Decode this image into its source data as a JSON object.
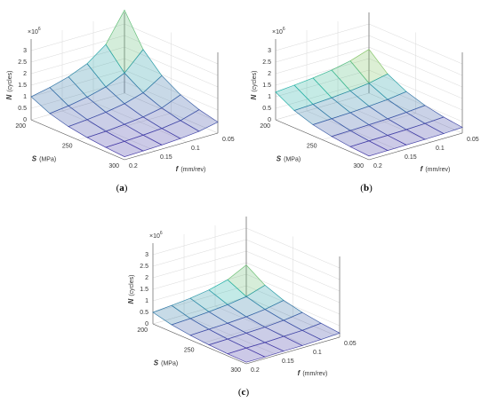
{
  "chart_data": [
    {
      "type": "surface",
      "label_parts": [
        "(",
        "a",
        ")"
      ],
      "xlabel": {
        "symbol": "S",
        "unit": "(MPa)"
      },
      "ylabel": {
        "symbol": "f",
        "unit": "(mm/rev)"
      },
      "zlabel": {
        "symbol": "N",
        "unit": "(cycles)"
      },
      "z_multiplier": {
        "base": "×10",
        "exponent": "6"
      },
      "x": [
        200,
        220,
        240,
        260,
        280,
        300
      ],
      "y": [
        0.05,
        0.08,
        0.11,
        0.14,
        0.17,
        0.2
      ],
      "z": [
        [
          3.6,
          2.34,
          1.74,
          1.4,
          1.17,
          1.0
        ],
        [
          2.24,
          1.45,
          1.08,
          0.87,
          0.72,
          0.62
        ],
        [
          1.45,
          0.94,
          0.7,
          0.56,
          0.47,
          0.4
        ],
        [
          0.97,
          0.63,
          0.47,
          0.38,
          0.31,
          0.27
        ],
        [
          0.67,
          0.43,
          0.32,
          0.26,
          0.22,
          0.19
        ],
        [
          0.48,
          0.31,
          0.23,
          0.18,
          0.15,
          0.13
        ]
      ],
      "xlim": [
        200,
        300
      ],
      "ylim": [
        0.05,
        0.2
      ],
      "zlim": [
        0,
        3.5
      ],
      "xticks": [
        200,
        250,
        300
      ],
      "yticks": [
        0.05,
        0.1,
        0.15,
        0.2
      ],
      "zticks": [
        0,
        0.5,
        1,
        1.5,
        2,
        2.5,
        3
      ],
      "grid": true,
      "colormap": [
        "#4a3aa8",
        "#25b5a8",
        "#f2d516"
      ]
    },
    {
      "type": "surface",
      "label_parts": [
        "(",
        "b",
        ")"
      ],
      "xlabel": {
        "symbol": "S",
        "unit": "(MPa)"
      },
      "ylabel": {
        "symbol": "f",
        "unit": "(mm/rev)"
      },
      "zlabel": {
        "symbol": "N",
        "unit": "(cycles)"
      },
      "z_multiplier": {
        "base": "×10",
        "exponent": "6"
      },
      "x": [
        200,
        220,
        240,
        260,
        280,
        300
      ],
      "y": [
        0.05,
        0.08,
        0.11,
        0.14,
        0.17,
        0.2
      ],
      "z": [
        [
          1.9,
          1.63,
          1.46,
          1.35,
          1.27,
          1.2
        ],
        [
          1.18,
          1.01,
          0.91,
          0.84,
          0.79,
          0.75
        ],
        [
          0.76,
          0.65,
          0.59,
          0.54,
          0.51,
          0.48
        ],
        [
          0.51,
          0.44,
          0.39,
          0.36,
          0.34,
          0.32
        ],
        [
          0.35,
          0.3,
          0.27,
          0.25,
          0.24,
          0.22
        ],
        [
          0.25,
          0.21,
          0.19,
          0.18,
          0.17,
          0.16
        ]
      ],
      "xlim": [
        200,
        300
      ],
      "ylim": [
        0.05,
        0.2
      ],
      "zlim": [
        0,
        3.5
      ],
      "xticks": [
        200,
        250,
        300
      ],
      "yticks": [
        0.05,
        0.1,
        0.15,
        0.2
      ],
      "zticks": [
        0,
        0.5,
        1,
        1.5,
        2,
        2.5,
        3
      ],
      "grid": true,
      "colormap": [
        "#4a3aa8",
        "#25b5a8",
        "#f2d516"
      ]
    },
    {
      "type": "surface",
      "label_parts": [
        "(",
        "c",
        ")"
      ],
      "xlabel": {
        "symbol": "S",
        "unit": "(MPa)"
      },
      "ylabel": {
        "symbol": "f",
        "unit": "(mm/rev)"
      },
      "zlabel": {
        "symbol": "N",
        "unit": "(cycles)"
      },
      "z_multiplier": {
        "base": "×10",
        "exponent": "6"
      },
      "x": [
        200,
        220,
        240,
        260,
        280,
        300
      ],
      "y": [
        0.05,
        0.08,
        0.11,
        0.14,
        0.17,
        0.2
      ],
      "z": [
        [
          1.4,
          0.99,
          0.78,
          0.65,
          0.57,
          0.5
        ],
        [
          0.87,
          0.61,
          0.49,
          0.41,
          0.35,
          0.31
        ],
        [
          0.56,
          0.4,
          0.31,
          0.26,
          0.23,
          0.2
        ],
        [
          0.38,
          0.27,
          0.21,
          0.18,
          0.15,
          0.13
        ],
        [
          0.26,
          0.18,
          0.15,
          0.12,
          0.11,
          0.09
        ],
        [
          0.18,
          0.13,
          0.1,
          0.09,
          0.07,
          0.07
        ]
      ],
      "xlim": [
        200,
        300
      ],
      "ylim": [
        0.05,
        0.2
      ],
      "zlim": [
        0,
        3.5
      ],
      "xticks": [
        200,
        250,
        300
      ],
      "yticks": [
        0.05,
        0.1,
        0.15,
        0.2
      ],
      "zticks": [
        0,
        0.5,
        1,
        1.5,
        2,
        2.5,
        3
      ],
      "grid": true,
      "colormap": [
        "#4a3aa8",
        "#25b5a8",
        "#f2d516"
      ]
    }
  ]
}
